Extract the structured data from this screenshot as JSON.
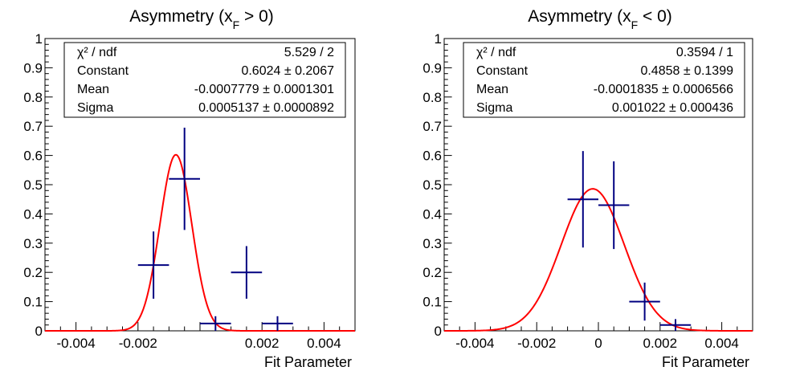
{
  "chart_data": [
    {
      "type": "scatter",
      "title_main": "Asymmetry (x",
      "title_sub": "F",
      "title_tail": " > 0)",
      "xlabel": "Fit Parameter",
      "ylabel": "",
      "xlim": [
        -0.005,
        0.005
      ],
      "ylim": [
        0,
        1
      ],
      "x_ticks": [
        "-0.004",
        "-0.002",
        "",
        "0.002",
        "0.004"
      ],
      "x_tick_values": [
        -0.004,
        -0.002,
        0,
        0.002,
        0.004
      ],
      "y_ticks": [
        "0",
        "0.1",
        "0.2",
        "0.3",
        "0.4",
        "0.5",
        "0.6",
        "0.7",
        "0.8",
        "0.9",
        "1"
      ],
      "y_tick_values": [
        0,
        0.1,
        0.2,
        0.3,
        0.4,
        0.5,
        0.6,
        0.7,
        0.8,
        0.9,
        1
      ],
      "bin_width": 0.001,
      "points": [
        {
          "x": -0.0015,
          "y": 0.225,
          "yerr": 0.115
        },
        {
          "x": -0.0005,
          "y": 0.52,
          "yerr": 0.175
        },
        {
          "x": 0.0005,
          "y": 0.025,
          "yerr": 0.025
        },
        {
          "x": 0.0015,
          "y": 0.2,
          "yerr": 0.09
        },
        {
          "x": 0.0025,
          "y": 0.025,
          "yerr": 0.025
        }
      ],
      "fit": {
        "constant": 0.6024,
        "mean": -0.0007779,
        "sigma": 0.0005137
      },
      "stats": [
        {
          "label": "χ² / ndf",
          "value": "5.529 / 2"
        },
        {
          "label": "Constant",
          "value": "0.6024 ± 0.2067"
        },
        {
          "label": "Mean",
          "value": "-0.0007779 ± 0.0001301"
        },
        {
          "label": "Sigma",
          "value": "0.0005137 ± 0.0000892"
        }
      ],
      "colors": {
        "points": "#000080",
        "fit": "#ff0000"
      }
    },
    {
      "type": "scatter",
      "title_main": "Asymmetry (x",
      "title_sub": "F",
      "title_tail": " < 0)",
      "xlabel": "Fit Parameter",
      "ylabel": "",
      "xlim": [
        -0.005,
        0.005
      ],
      "ylim": [
        0,
        1
      ],
      "x_ticks": [
        "-0.004",
        "-0.002",
        "0",
        "0.002",
        "0.004"
      ],
      "x_tick_values": [
        -0.004,
        -0.002,
        0,
        0.002,
        0.004
      ],
      "y_ticks": [
        "0",
        "0.1",
        "0.2",
        "0.3",
        "0.4",
        "0.5",
        "0.6",
        "0.7",
        "0.8",
        "0.9",
        "1"
      ],
      "y_tick_values": [
        0,
        0.1,
        0.2,
        0.3,
        0.4,
        0.5,
        0.6,
        0.7,
        0.8,
        0.9,
        1
      ],
      "bin_width": 0.001,
      "points": [
        {
          "x": -0.0005,
          "y": 0.45,
          "yerr": 0.165
        },
        {
          "x": 0.0005,
          "y": 0.43,
          "yerr": 0.15
        },
        {
          "x": 0.0015,
          "y": 0.1,
          "yerr": 0.065
        },
        {
          "x": 0.0025,
          "y": 0.02,
          "yerr": 0.02
        }
      ],
      "fit": {
        "constant": 0.4858,
        "mean": -0.0001835,
        "sigma": 0.001022
      },
      "stats": [
        {
          "label": "χ² / ndf",
          "value": "0.3594 / 1"
        },
        {
          "label": "Constant",
          "value": "0.4858 ± 0.1399"
        },
        {
          "label": "Mean",
          "value": "-0.0001835 ± 0.0006566"
        },
        {
          "label": "Sigma",
          "value": "0.001022 ± 0.000436"
        }
      ],
      "colors": {
        "points": "#000080",
        "fit": "#ff0000"
      }
    }
  ]
}
